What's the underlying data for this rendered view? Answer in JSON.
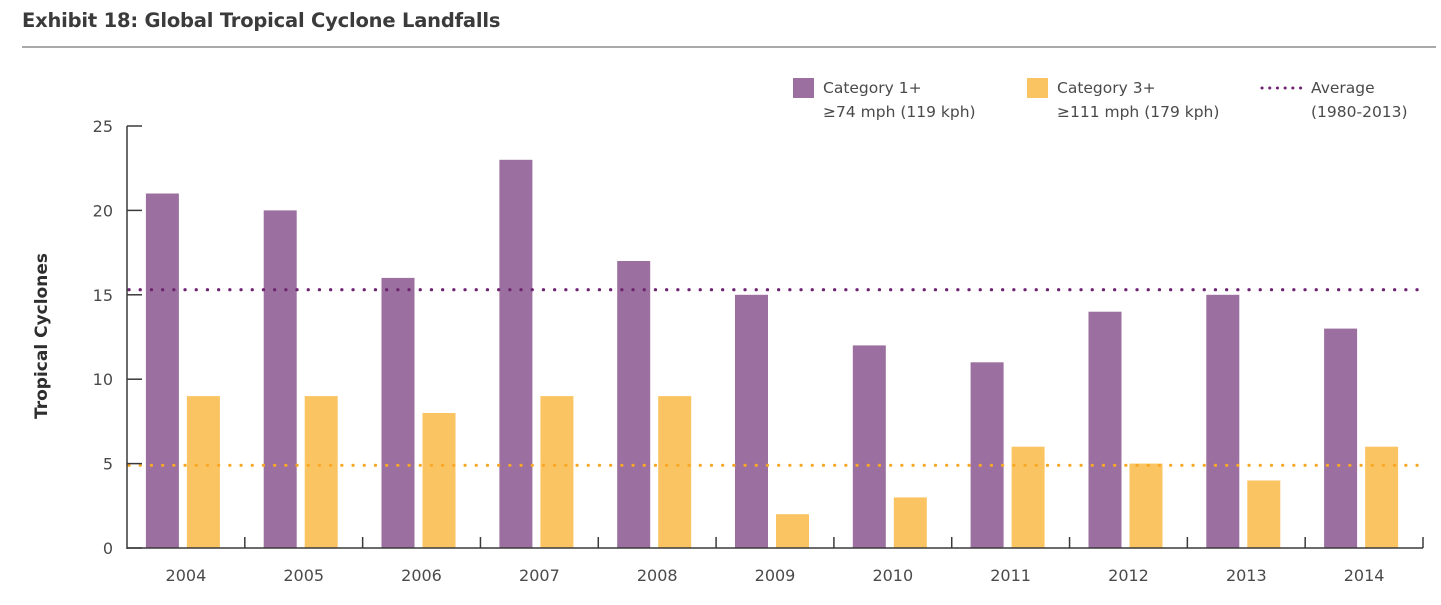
{
  "header": {
    "title": "Exhibit 18: Global Tropical Cyclone Landfalls"
  },
  "colors": {
    "category1": "#9b6f9f",
    "category3": "#fbc462",
    "category1_average": "#6e2470",
    "category3_average": "#f9a825",
    "axis": "#3a3a3a",
    "text": "#4a4a4a"
  },
  "chart_data": {
    "type": "bar",
    "title": "Exhibit 18: Global Tropical Cyclone Landfalls",
    "xlabel": "",
    "ylabel": "Tropical Cyclones",
    "ylim": [
      0,
      25
    ],
    "yticks": [
      0,
      5,
      10,
      15,
      20,
      25
    ],
    "grid": false,
    "legend_position": "top-right",
    "categories": [
      "2004",
      "2005",
      "2006",
      "2007",
      "2008",
      "2009",
      "2010",
      "2011",
      "2012",
      "2013",
      "2014"
    ],
    "series": [
      {
        "name": "Category 1+",
        "subtitle": "≥74 mph (119 kph)",
        "values": [
          21,
          20,
          16,
          23,
          17,
          15,
          12,
          11,
          14,
          15,
          13
        ]
      },
      {
        "name": "Category 3+",
        "subtitle": "≥111 mph (179 kph)",
        "values": [
          9,
          9,
          8,
          9,
          9,
          2,
          3,
          6,
          5,
          4,
          6
        ]
      }
    ],
    "reference_lines": [
      {
        "name": "Category 1+ Average (1980-2013)",
        "value": 15.3
      },
      {
        "name": "Category 3+ Average (1980-2013)",
        "value": 4.9
      }
    ],
    "legend": [
      {
        "label": "Category 1+",
        "sublabel": "≥74 mph (119 kph)",
        "kind": "box"
      },
      {
        "label": "Category 3+",
        "sublabel": "≥111 mph (179 kph)",
        "kind": "box"
      },
      {
        "label": "Average",
        "sublabel": "(1980-2013)",
        "kind": "dotted-line"
      }
    ]
  }
}
